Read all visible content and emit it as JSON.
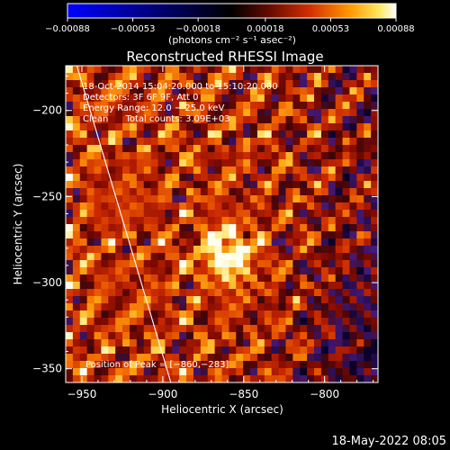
{
  "chart_data": {
    "type": "heatmap",
    "title": "Reconstructed RHESSI Image",
    "xlabel": "Heliocentric X (arcsec)",
    "ylabel": "Heliocentric Y (arcsec)",
    "xlim": [
      -960,
      -767
    ],
    "ylim": [
      -358,
      -174
    ],
    "xticks": [
      -950,
      -900,
      -850,
      -800
    ],
    "xtick_labels": [
      "−950",
      "−900",
      "−850",
      "−800"
    ],
    "yticks": [
      -200,
      -250,
      -300,
      -350
    ],
    "ytick_labels": [
      "−200",
      "−250",
      "−300",
      "−350"
    ],
    "colorbar": {
      "min": -0.00088,
      "max": 0.00088,
      "ticks": [
        -0.00088,
        -0.00053,
        -0.00018,
        0.00018,
        0.00053,
        0.00088
      ],
      "tick_labels": [
        "−0.00088",
        "−0.00053",
        "−0.00018",
        "0.00018",
        "0.00053",
        "0.00088"
      ],
      "units_label": "(photons cm⁻² s⁻¹ asec⁻²)"
    },
    "annotations": [
      "18‑Oct‑2014 15:04:20.000 to 15:10:20.000",
      "Detectors: 3F 6F 9F, Att 0",
      "Energy Range: 12.0 − 25.0 keV",
      "Clean      Total counts: 3.09E+03"
    ],
    "peak_label": "Position of Peak = [−860,−283]",
    "peak": [
      -860,
      -283
    ],
    "limb_line": [
      [
        -955,
        -168
      ],
      [
        -895,
        -358
      ]
    ],
    "grid": false
  },
  "footer_timestamp": "18‑May‑2022 08:05"
}
